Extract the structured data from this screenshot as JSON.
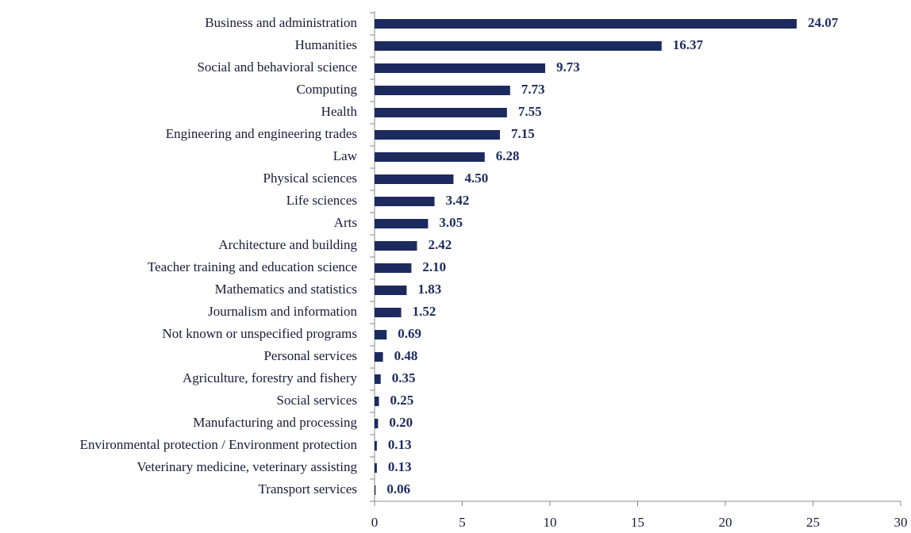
{
  "chart_data": {
    "type": "bar",
    "orientation": "horizontal",
    "categories": [
      "Business and administration",
      "Humanities",
      "Social and behavioral science",
      "Computing",
      "Health",
      "Engineering and engineering trades",
      "Law",
      "Physical sciences",
      "Life sciences",
      "Arts",
      "Architecture and building",
      "Teacher training and education science",
      "Mathematics and statistics",
      "Journalism and information",
      "Not known or unspecified programs",
      "Personal services",
      "Agriculture, forestry and fishery",
      "Social services",
      "Manufacturing and processing",
      "Environmental protection / Environment protection",
      "Veterinary medicine, veterinary assisting",
      "Transport services"
    ],
    "values": [
      24.07,
      16.37,
      9.73,
      7.73,
      7.55,
      7.15,
      6.28,
      4.5,
      3.42,
      3.05,
      2.42,
      2.1,
      1.83,
      1.52,
      0.69,
      0.48,
      0.35,
      0.25,
      0.2,
      0.13,
      0.13,
      0.06
    ],
    "value_labels": [
      "24.07",
      "16.37",
      "9.73",
      "7.73",
      "7.55",
      "7.15",
      "6.28",
      "4.50",
      "3.42",
      "3.05",
      "2.42",
      "2.10",
      "1.83",
      "1.52",
      "0.69",
      "0.48",
      "0.35",
      "0.25",
      "0.20",
      "0.13",
      "0.13",
      "0.06"
    ],
    "color": "#1c2a5e",
    "xlim": [
      0,
      30
    ],
    "xticks": [
      0,
      5,
      10,
      15,
      20,
      25,
      30
    ]
  }
}
